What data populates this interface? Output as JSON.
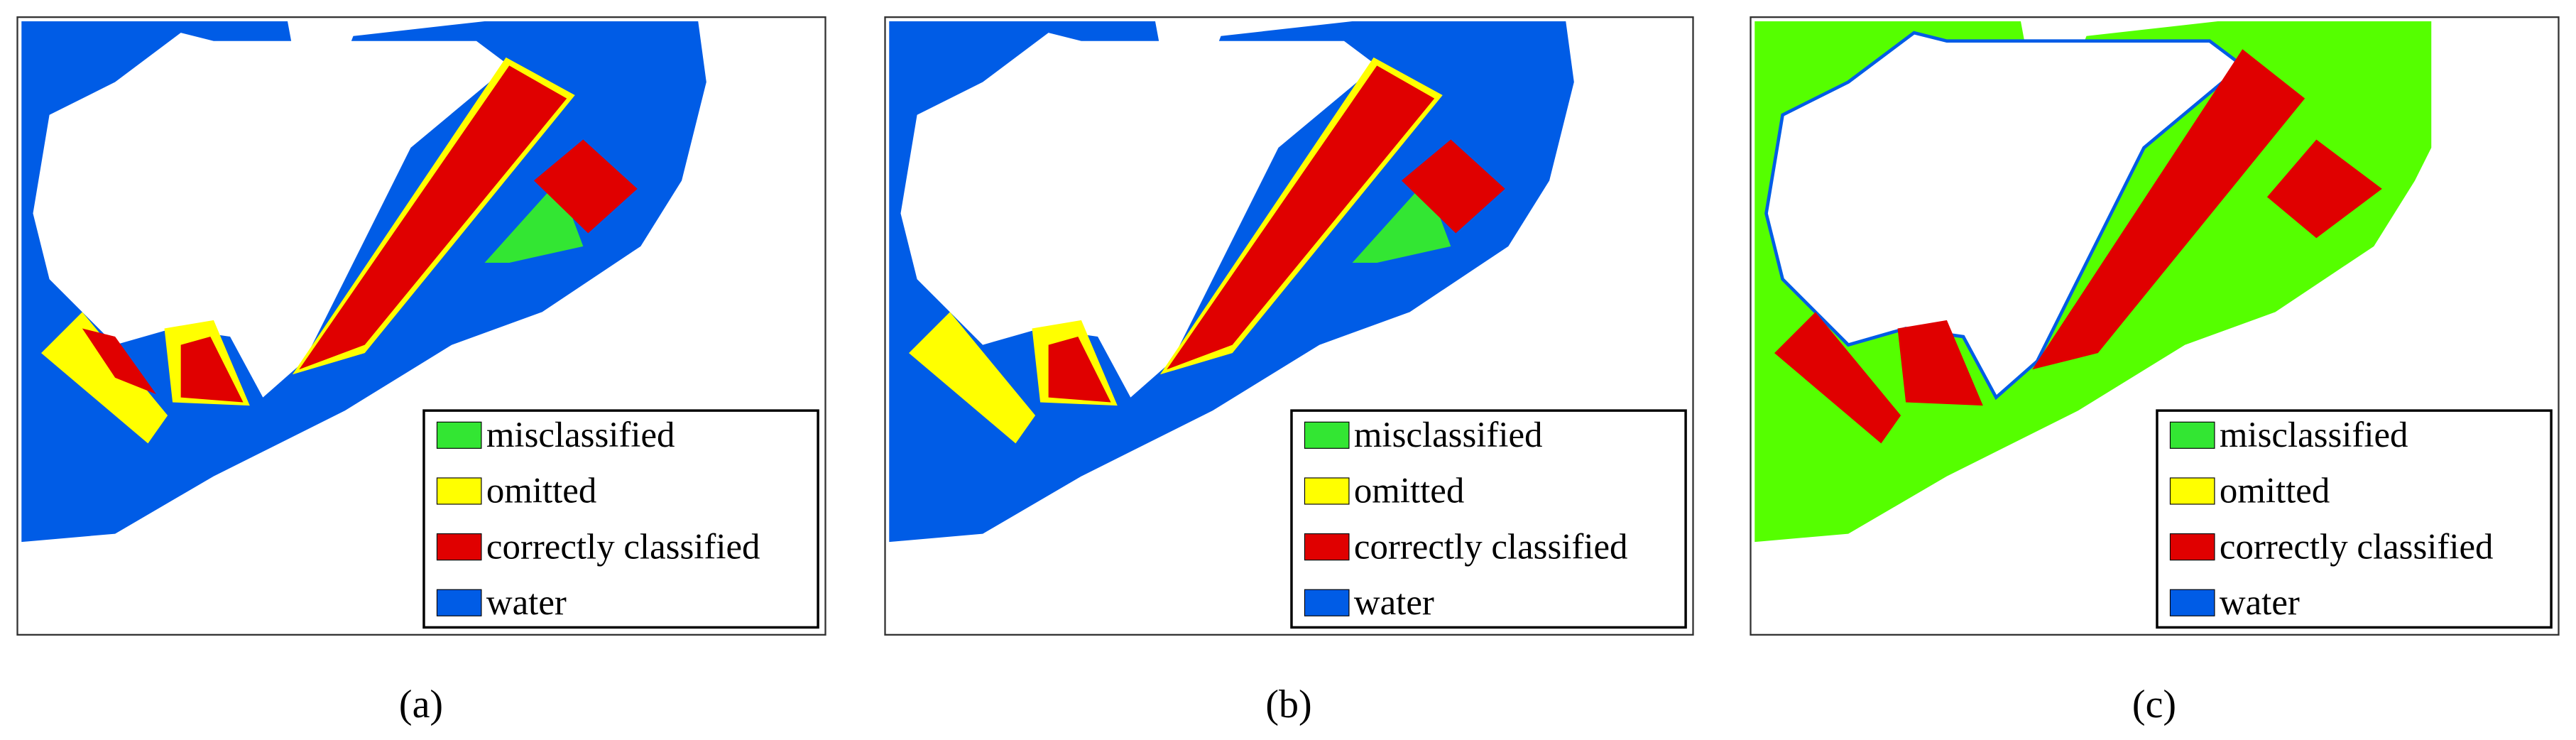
{
  "panels": [
    {
      "caption": "(a)",
      "legend": [
        {
          "label": "misclassified",
          "color": "#33e633"
        },
        {
          "label": "omitted",
          "color": "#ffff00"
        },
        {
          "label": "correctly classified",
          "color": "#e00000"
        },
        {
          "label": "water",
          "color": "#005ce6"
        }
      ]
    },
    {
      "caption": "(b)",
      "legend": [
        {
          "label": "misclassified",
          "color": "#33e633"
        },
        {
          "label": "omitted",
          "color": "#ffff00"
        },
        {
          "label": "correctly classified",
          "color": "#e00000"
        },
        {
          "label": "water",
          "color": "#005ce6"
        }
      ]
    },
    {
      "caption": "(c)",
      "legend": [
        {
          "label": "misclassified",
          "color": "#33e633"
        },
        {
          "label": "omitted",
          "color": "#ffff00"
        },
        {
          "label": "correctly classified",
          "color": "#e00000"
        },
        {
          "label": "water",
          "color": "#005ce6"
        }
      ]
    }
  ]
}
